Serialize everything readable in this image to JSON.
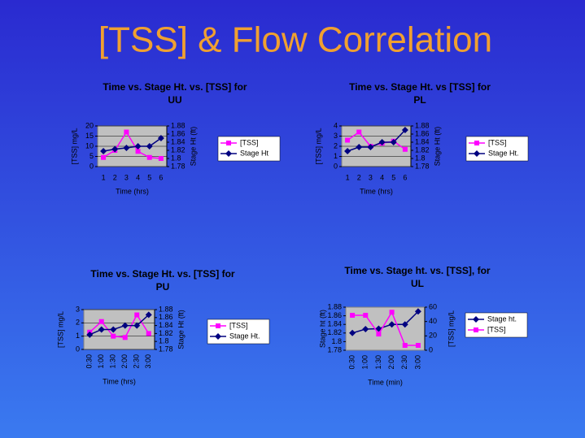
{
  "title": "[TSS] & Flow Correlation",
  "chart_data": [
    {
      "type": "line",
      "title": [
        "Time vs. Stage Ht. vs. [TSS] for",
        "UU"
      ],
      "categories": [
        "1",
        "2",
        "3",
        "4",
        "5",
        "6"
      ],
      "x_label": "Time (hrs)",
      "y_label": "[TSS] mg/L",
      "y2_label": "Stage Ht (ft)",
      "ylim": [
        0,
        20
      ],
      "yticks": [
        0,
        5,
        10,
        15,
        20
      ],
      "y2lim": [
        1.78,
        1.88
      ],
      "y2ticks": [
        1.78,
        1.8,
        1.82,
        1.84,
        1.86,
        1.88
      ],
      "grid": true,
      "series": [
        {
          "name": "[TSS]",
          "color": "#ff00ff",
          "marker": "square",
          "values": [
            4.5,
            8,
            17,
            7.5,
            4.5,
            4
          ]
        },
        {
          "name": "Stage Ht",
          "color": "#000080",
          "marker": "diamond",
          "axis": "y2",
          "values": [
            1.818,
            1.823,
            1.826,
            1.83,
            1.83,
            1.85
          ]
        }
      ]
    },
    {
      "type": "line",
      "title": [
        "Time vs. Stage Ht. vs [TSS] for",
        "PL"
      ],
      "categories": [
        "1",
        "2",
        "3",
        "4",
        "5",
        "6"
      ],
      "x_label": "Time (hrs)",
      "y_label": "[TSS] mg/L",
      "y2_label": "Stage Ht (ft)",
      "ylim": [
        0,
        4
      ],
      "yticks": [
        0,
        1,
        2,
        3,
        4
      ],
      "y2lim": [
        1.78,
        1.88
      ],
      "y2ticks": [
        1.78,
        1.8,
        1.82,
        1.84,
        1.86,
        1.88
      ],
      "grid": true,
      "series": [
        {
          "name": "[TSS]",
          "color": "#ff00ff",
          "marker": "square",
          "values": [
            2.6,
            3.4,
            2.0,
            2.3,
            2.5,
            1.7
          ]
        },
        {
          "name": "Stage Ht.",
          "color": "#000080",
          "marker": "diamond",
          "axis": "y2",
          "values": [
            1.818,
            1.828,
            1.828,
            1.84,
            1.84,
            1.87
          ]
        }
      ]
    },
    {
      "type": "line",
      "title": [
        "Time vs. Stage Ht. vs. [TSS] for",
        "PU"
      ],
      "categories": [
        "0:30",
        "1:00",
        "1:30",
        "2:00",
        "2:30",
        "3:00"
      ],
      "x_label": "Time (hrs)",
      "y_label": "[TSS] mg/L",
      "y2_label": "Stage Ht (ft)",
      "ylim": [
        0,
        3
      ],
      "yticks": [
        0,
        1,
        2,
        3
      ],
      "y2lim": [
        1.78,
        1.88
      ],
      "y2ticks": [
        1.78,
        1.8,
        1.82,
        1.84,
        1.86,
        1.88
      ],
      "grid": true,
      "series": [
        {
          "name": "[TSS]",
          "color": "#ff00ff",
          "marker": "square",
          "values": [
            1.3,
            2.1,
            1.0,
            0.9,
            2.6,
            1.2
          ]
        },
        {
          "name": "Stage Ht.",
          "color": "#000080",
          "marker": "diamond",
          "axis": "y2",
          "values": [
            1.817,
            1.83,
            1.83,
            1.84,
            1.84,
            1.867
          ]
        }
      ]
    },
    {
      "type": "line",
      "title": [
        "Time vs. Stage ht. vs. [TSS], for",
        "UL"
      ],
      "categories": [
        "0:30",
        "1:00",
        "1:30",
        "2:00",
        "2:30",
        "3:00"
      ],
      "x_label": "Time (min)",
      "y_label": "Stage ht (ft)",
      "y2_label": "[TSS] mg/L",
      "ylim": [
        1.78,
        1.88
      ],
      "yticks": [
        1.78,
        1.8,
        1.82,
        1.84,
        1.86,
        1.88
      ],
      "y2lim": [
        0,
        60
      ],
      "y2ticks": [
        0,
        20,
        40,
        60
      ],
      "grid": false,
      "series": [
        {
          "name": "Stage ht.",
          "color": "#000080",
          "marker": "diamond",
          "values": [
            1.82,
            1.829,
            1.83,
            1.84,
            1.84,
            1.87
          ]
        },
        {
          "name": "[TSS]",
          "color": "#ff00ff",
          "marker": "square",
          "axis": "y2",
          "values": [
            48.7,
            48.7,
            22.6,
            53,
            6.8,
            6.8
          ]
        }
      ]
    }
  ]
}
